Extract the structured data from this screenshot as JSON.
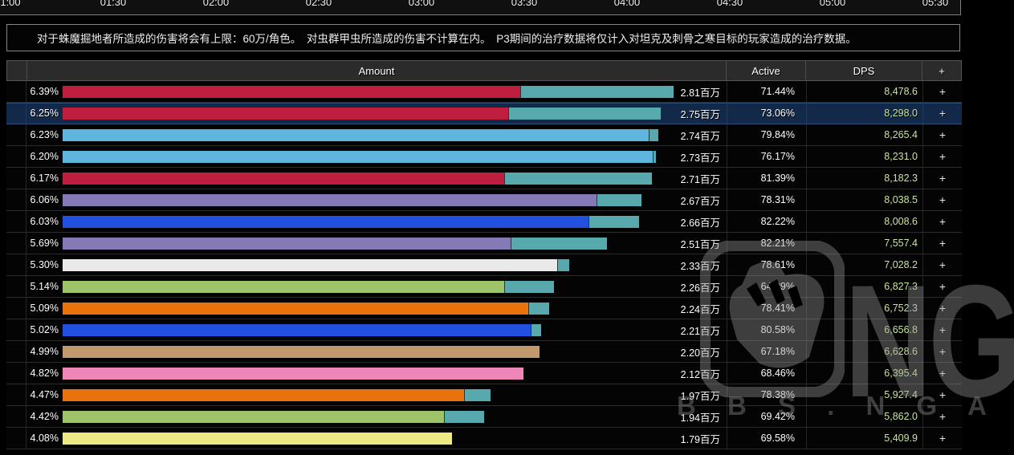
{
  "timeline": {
    "ticks": [
      "1:00",
      "01:30",
      "02:00",
      "02:30",
      "03:00",
      "03:30",
      "04:00",
      "04:30",
      "05:00",
      "05:30"
    ]
  },
  "notice": {
    "text": "对于蛛魔掘地者所造成的伤害将会有上限：60万/角色。　对虫群甲虫所造成的伤害不计算在内。　P3期间的治疗数据将仅计入对坦克及刺骨之寒目标的玩家造成的治疗数据。"
  },
  "table": {
    "headers": {
      "amount": "Amount",
      "active": "Active",
      "dps": "DPS",
      "expand": "+"
    },
    "expand_label": "+",
    "secondary_bar_color": "#57A9AE",
    "dps_text_color": "#C9E49E",
    "rows": [
      {
        "pct": "6.39%",
        "amount": "2.81百万",
        "active": "71.44%",
        "dps": "8,478.6",
        "color": "#C01E3E",
        "bar_total": 761,
        "bar_main": 570,
        "highlighted": false
      },
      {
        "pct": "6.25%",
        "amount": "2.75百万",
        "active": "73.06%",
        "dps": "8,298.0",
        "color": "#C01E3E",
        "bar_total": 745,
        "bar_main": 555,
        "highlighted": true
      },
      {
        "pct": "6.23%",
        "amount": "2.74百万",
        "active": "79.84%",
        "dps": "8,265.4",
        "color": "#5FB6DC",
        "bar_total": 742,
        "bar_main": 730,
        "highlighted": false
      },
      {
        "pct": "6.20%",
        "amount": "2.73百万",
        "active": "76.17%",
        "dps": "8,231.0",
        "color": "#5FB6DC",
        "bar_total": 739,
        "bar_main": 735,
        "highlighted": false
      },
      {
        "pct": "6.17%",
        "amount": "2.71百万",
        "active": "81.39%",
        "dps": "8,182.3",
        "color": "#C01E3E",
        "bar_total": 734,
        "bar_main": 550,
        "highlighted": false
      },
      {
        "pct": "6.06%",
        "amount": "2.67百万",
        "active": "78.31%",
        "dps": "8,038.5",
        "color": "#857AB5",
        "bar_total": 721,
        "bar_main": 665,
        "highlighted": false
      },
      {
        "pct": "6.03%",
        "amount": "2.66百万",
        "active": "82.22%",
        "dps": "8,008.6",
        "color": "#2450E0",
        "bar_total": 718,
        "bar_main": 655,
        "highlighted": false
      },
      {
        "pct": "5.69%",
        "amount": "2.51百万",
        "active": "82.21%",
        "dps": "7,557.4",
        "color": "#857AB5",
        "bar_total": 678,
        "bar_main": 558,
        "highlighted": false
      },
      {
        "pct": "5.30%",
        "amount": "2.33百万",
        "active": "78.61%",
        "dps": "7,028.2",
        "color": "#E9E9E9",
        "bar_total": 631,
        "bar_main": 616,
        "highlighted": false
      },
      {
        "pct": "5.14%",
        "amount": "2.26百万",
        "active": "64.09%",
        "dps": "6,827.3",
        "color": "#9FC368",
        "bar_total": 612,
        "bar_main": 550,
        "highlighted": false
      },
      {
        "pct": "5.09%",
        "amount": "2.24百万",
        "active": "78.41%",
        "dps": "6,752.3",
        "color": "#E9720D",
        "bar_total": 606,
        "bar_main": 580,
        "highlighted": false
      },
      {
        "pct": "5.02%",
        "amount": "2.21百万",
        "active": "80.58%",
        "dps": "6,656.8",
        "color": "#2450E0",
        "bar_total": 596,
        "bar_main": 583,
        "highlighted": false
      },
      {
        "pct": "4.99%",
        "amount": "2.20百万",
        "active": "67.18%",
        "dps": "6,628.6",
        "color": "#C09A6E",
        "bar_total": 594,
        "bar_main": 594,
        "highlighted": false
      },
      {
        "pct": "4.82%",
        "amount": "2.12百万",
        "active": "68.46%",
        "dps": "6,395.4",
        "color": "#EE86B8",
        "bar_total": 574,
        "bar_main": 574,
        "highlighted": false
      },
      {
        "pct": "4.47%",
        "amount": "1.97百万",
        "active": "78.38%",
        "dps": "5,927.4",
        "color": "#E9720D",
        "bar_total": 533,
        "bar_main": 500,
        "highlighted": false
      },
      {
        "pct": "4.42%",
        "amount": "1.94百万",
        "active": "69.42%",
        "dps": "5,862.0",
        "color": "#9FC368",
        "bar_total": 525,
        "bar_main": 475,
        "highlighted": false
      },
      {
        "pct": "4.08%",
        "amount": "1.79百万",
        "active": "69.58%",
        "dps": "5,409.9",
        "color": "#EDE985",
        "bar_total": 485,
        "bar_main": 485,
        "highlighted": false
      }
    ]
  },
  "watermark": {
    "logo_text": "NGA",
    "site_text": "B B S . N G A . C N"
  }
}
